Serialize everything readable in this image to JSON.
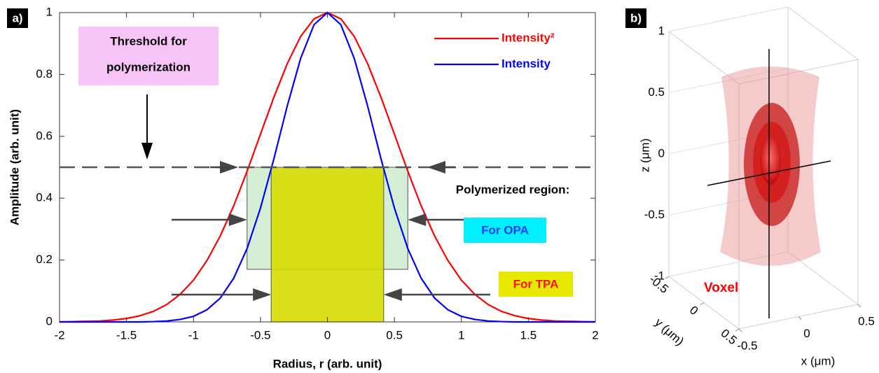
{
  "chart_data": [
    {
      "type": "line",
      "panel_label": "a)",
      "x": [
        -2,
        -1.9,
        -1.8,
        -1.7,
        -1.6,
        -1.5,
        -1.4,
        -1.3,
        -1.2,
        -1.1,
        -1,
        -0.9,
        -0.8,
        -0.7,
        -0.6,
        -0.5,
        -0.4,
        -0.3,
        -0.2,
        -0.1,
        0,
        0.1,
        0.2,
        0.3,
        0.4,
        0.5,
        0.6,
        0.7,
        0.8,
        0.9,
        1,
        1.1,
        1.2,
        1.3,
        1.4,
        1.5,
        1.6,
        1.7,
        1.8,
        1.9,
        2
      ],
      "series": [
        {
          "name": "Intensity²",
          "color": "#ff0000",
          "values": [
            0,
            0.001,
            0.002,
            0.003,
            0.006,
            0.011,
            0.02,
            0.034,
            0.056,
            0.089,
            0.135,
            0.198,
            0.278,
            0.375,
            0.487,
            0.607,
            0.726,
            0.835,
            0.923,
            0.98,
            1,
            0.98,
            0.923,
            0.835,
            0.726,
            0.607,
            0.487,
            0.375,
            0.278,
            0.198,
            0.135,
            0.089,
            0.056,
            0.034,
            0.02,
            0.011,
            0.006,
            0.003,
            0.002,
            0.001,
            0
          ]
        },
        {
          "name": "Intensity",
          "color": "#0000ff",
          "values": [
            0,
            0,
            0,
            0,
            0,
            0,
            0,
            0.001,
            0.003,
            0.008,
            0.018,
            0.039,
            0.077,
            0.141,
            0.237,
            0.368,
            0.527,
            0.698,
            0.852,
            0.961,
            1,
            0.961,
            0.852,
            0.698,
            0.527,
            0.368,
            0.237,
            0.141,
            0.077,
            0.039,
            0.018,
            0.008,
            0.003,
            0.001,
            0,
            0,
            0,
            0,
            0,
            0,
            0
          ]
        }
      ],
      "xlim": [
        -2,
        2
      ],
      "ylim": [
        0,
        1
      ],
      "xticks": [
        -2,
        -1.5,
        -1,
        -0.5,
        0,
        0.5,
        1,
        1.5,
        2
      ],
      "yticks": [
        0,
        0.2,
        0.4,
        0.6,
        0.8,
        1
      ],
      "xlabel": "Radius, r (arb. unit)",
      "ylabel": "Amplitude (arb. unit)",
      "legend": "upper right",
      "threshold": 0.5,
      "threshold_label": [
        "Threshold for",
        "polymerization"
      ],
      "region_label": "Polymerized region:",
      "regions": [
        {
          "label": "For OPA",
          "x": [
            -0.6,
            0.6
          ],
          "y": [
            0.17,
            0.5
          ],
          "color": "#cdeccf"
        },
        {
          "label": "For TPA",
          "x": [
            -0.42,
            0.42
          ],
          "y": [
            0,
            0.5
          ],
          "color": "#d6dc00"
        }
      ]
    },
    {
      "type": "surface3d",
      "panel_label": "b)",
      "annotation": "Voxel",
      "xlabel": "x (μm)",
      "ylabel": "y (μm)",
      "zlabel": "z (μm)",
      "xlim": [
        -0.5,
        0.5
      ],
      "ylim": [
        -0.5,
        0.5
      ],
      "zlim": [
        -1,
        1
      ],
      "xticks": [
        -0.5,
        0,
        0.5
      ],
      "yticks": [
        -0.5,
        0,
        0.5
      ],
      "zticks": [
        -1,
        -0.5,
        0,
        0.5,
        1
      ]
    }
  ]
}
